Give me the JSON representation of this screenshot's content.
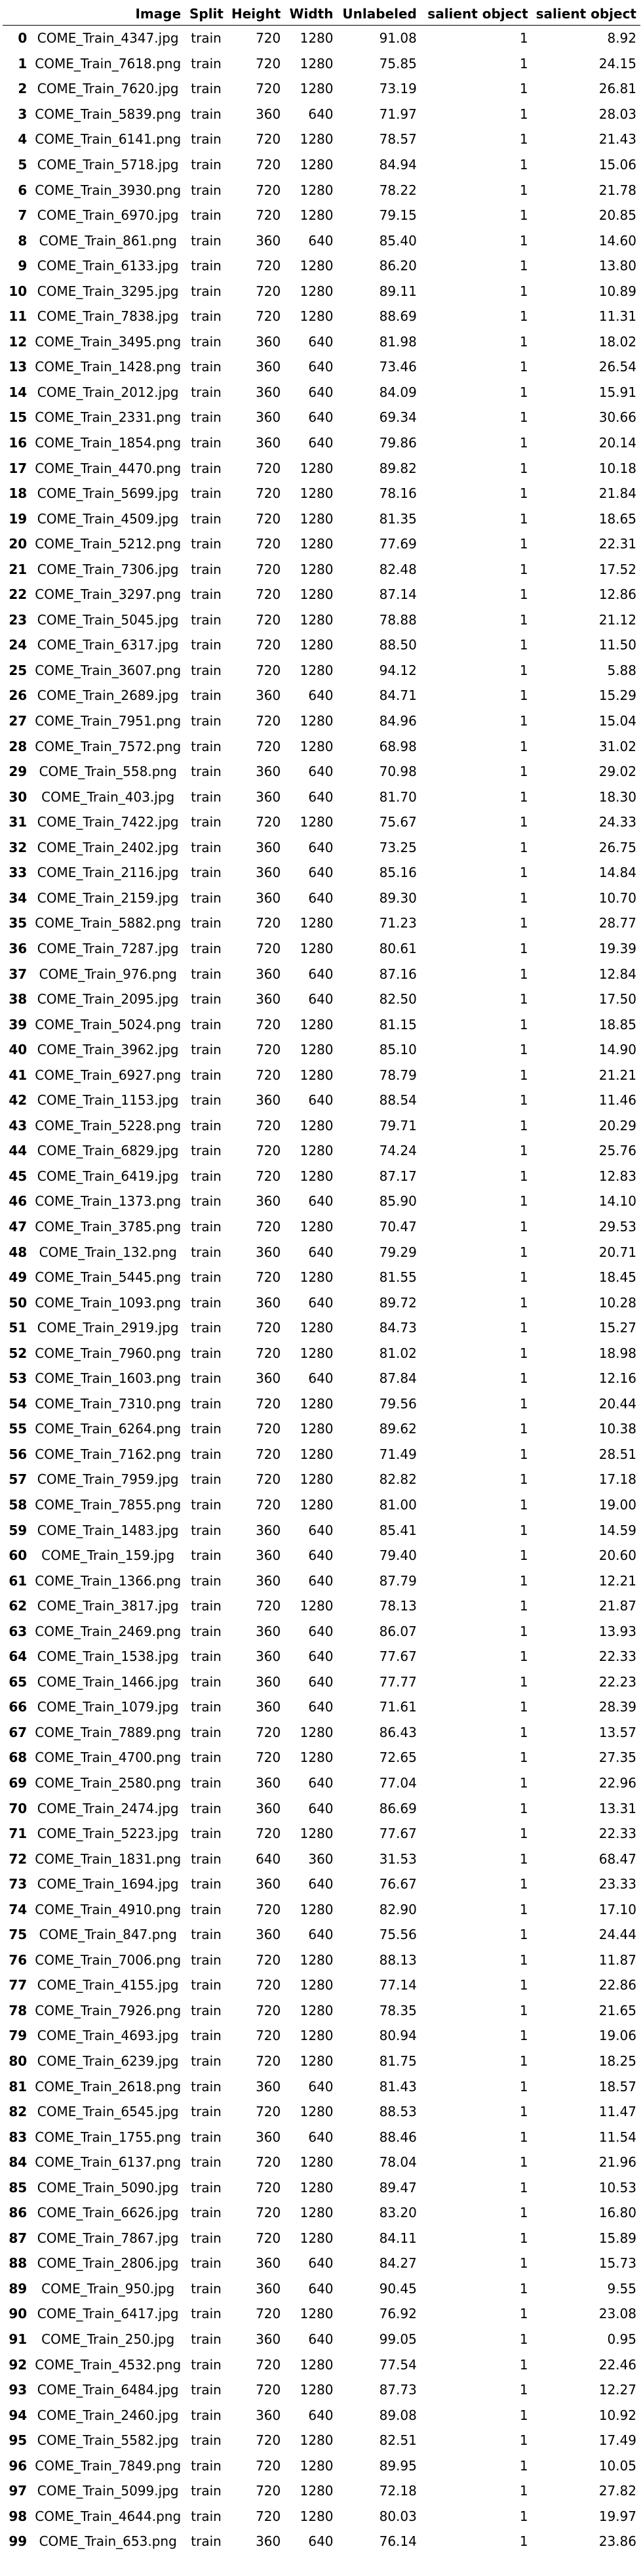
{
  "table": {
    "columns": [
      "",
      "Image",
      "Split",
      "Height",
      "Width",
      "Unlabeled",
      "salient object",
      "salient object"
    ],
    "rows": [
      [
        "0",
        "COME_Train_4347.jpg",
        "train",
        "720",
        "1280",
        "91.08",
        "1",
        "8.92"
      ],
      [
        "1",
        "COME_Train_7618.png",
        "train",
        "720",
        "1280",
        "75.85",
        "1",
        "24.15"
      ],
      [
        "2",
        "COME_Train_7620.jpg",
        "train",
        "720",
        "1280",
        "73.19",
        "1",
        "26.81"
      ],
      [
        "3",
        "COME_Train_5839.png",
        "train",
        "360",
        "640",
        "71.97",
        "1",
        "28.03"
      ],
      [
        "4",
        "COME_Train_6141.png",
        "train",
        "720",
        "1280",
        "78.57",
        "1",
        "21.43"
      ],
      [
        "5",
        "COME_Train_5718.jpg",
        "train",
        "720",
        "1280",
        "84.94",
        "1",
        "15.06"
      ],
      [
        "6",
        "COME_Train_3930.png",
        "train",
        "720",
        "1280",
        "78.22",
        "1",
        "21.78"
      ],
      [
        "7",
        "COME_Train_6970.jpg",
        "train",
        "720",
        "1280",
        "79.15",
        "1",
        "20.85"
      ],
      [
        "8",
        "COME_Train_861.png",
        "train",
        "360",
        "640",
        "85.40",
        "1",
        "14.60"
      ],
      [
        "9",
        "COME_Train_6133.jpg",
        "train",
        "720",
        "1280",
        "86.20",
        "1",
        "13.80"
      ],
      [
        "10",
        "COME_Train_3295.jpg",
        "train",
        "720",
        "1280",
        "89.11",
        "1",
        "10.89"
      ],
      [
        "11",
        "COME_Train_7838.jpg",
        "train",
        "720",
        "1280",
        "88.69",
        "1",
        "11.31"
      ],
      [
        "12",
        "COME_Train_3495.png",
        "train",
        "360",
        "640",
        "81.98",
        "1",
        "18.02"
      ],
      [
        "13",
        "COME_Train_1428.png",
        "train",
        "360",
        "640",
        "73.46",
        "1",
        "26.54"
      ],
      [
        "14",
        "COME_Train_2012.jpg",
        "train",
        "360",
        "640",
        "84.09",
        "1",
        "15.91"
      ],
      [
        "15",
        "COME_Train_2331.png",
        "train",
        "360",
        "640",
        "69.34",
        "1",
        "30.66"
      ],
      [
        "16",
        "COME_Train_1854.png",
        "train",
        "360",
        "640",
        "79.86",
        "1",
        "20.14"
      ],
      [
        "17",
        "COME_Train_4470.png",
        "train",
        "720",
        "1280",
        "89.82",
        "1",
        "10.18"
      ],
      [
        "18",
        "COME_Train_5699.jpg",
        "train",
        "720",
        "1280",
        "78.16",
        "1",
        "21.84"
      ],
      [
        "19",
        "COME_Train_4509.jpg",
        "train",
        "720",
        "1280",
        "81.35",
        "1",
        "18.65"
      ],
      [
        "20",
        "COME_Train_5212.png",
        "train",
        "720",
        "1280",
        "77.69",
        "1",
        "22.31"
      ],
      [
        "21",
        "COME_Train_7306.jpg",
        "train",
        "720",
        "1280",
        "82.48",
        "1",
        "17.52"
      ],
      [
        "22",
        "COME_Train_3297.png",
        "train",
        "720",
        "1280",
        "87.14",
        "1",
        "12.86"
      ],
      [
        "23",
        "COME_Train_5045.jpg",
        "train",
        "720",
        "1280",
        "78.88",
        "1",
        "21.12"
      ],
      [
        "24",
        "COME_Train_6317.jpg",
        "train",
        "720",
        "1280",
        "88.50",
        "1",
        "11.50"
      ],
      [
        "25",
        "COME_Train_3607.png",
        "train",
        "720",
        "1280",
        "94.12",
        "1",
        "5.88"
      ],
      [
        "26",
        "COME_Train_2689.jpg",
        "train",
        "360",
        "640",
        "84.71",
        "1",
        "15.29"
      ],
      [
        "27",
        "COME_Train_7951.png",
        "train",
        "720",
        "1280",
        "84.96",
        "1",
        "15.04"
      ],
      [
        "28",
        "COME_Train_7572.png",
        "train",
        "720",
        "1280",
        "68.98",
        "1",
        "31.02"
      ],
      [
        "29",
        "COME_Train_558.png",
        "train",
        "360",
        "640",
        "70.98",
        "1",
        "29.02"
      ],
      [
        "30",
        "COME_Train_403.jpg",
        "train",
        "360",
        "640",
        "81.70",
        "1",
        "18.30"
      ],
      [
        "31",
        "COME_Train_7422.jpg",
        "train",
        "720",
        "1280",
        "75.67",
        "1",
        "24.33"
      ],
      [
        "32",
        "COME_Train_2402.jpg",
        "train",
        "360",
        "640",
        "73.25",
        "1",
        "26.75"
      ],
      [
        "33",
        "COME_Train_2116.jpg",
        "train",
        "360",
        "640",
        "85.16",
        "1",
        "14.84"
      ],
      [
        "34",
        "COME_Train_2159.jpg",
        "train",
        "360",
        "640",
        "89.30",
        "1",
        "10.70"
      ],
      [
        "35",
        "COME_Train_5882.png",
        "train",
        "720",
        "1280",
        "71.23",
        "1",
        "28.77"
      ],
      [
        "36",
        "COME_Train_7287.jpg",
        "train",
        "720",
        "1280",
        "80.61",
        "1",
        "19.39"
      ],
      [
        "37",
        "COME_Train_976.png",
        "train",
        "360",
        "640",
        "87.16",
        "1",
        "12.84"
      ],
      [
        "38",
        "COME_Train_2095.jpg",
        "train",
        "360",
        "640",
        "82.50",
        "1",
        "17.50"
      ],
      [
        "39",
        "COME_Train_5024.png",
        "train",
        "720",
        "1280",
        "81.15",
        "1",
        "18.85"
      ],
      [
        "40",
        "COME_Train_3962.jpg",
        "train",
        "720",
        "1280",
        "85.10",
        "1",
        "14.90"
      ],
      [
        "41",
        "COME_Train_6927.png",
        "train",
        "720",
        "1280",
        "78.79",
        "1",
        "21.21"
      ],
      [
        "42",
        "COME_Train_1153.jpg",
        "train",
        "360",
        "640",
        "88.54",
        "1",
        "11.46"
      ],
      [
        "43",
        "COME_Train_5228.png",
        "train",
        "720",
        "1280",
        "79.71",
        "1",
        "20.29"
      ],
      [
        "44",
        "COME_Train_6829.jpg",
        "train",
        "720",
        "1280",
        "74.24",
        "1",
        "25.76"
      ],
      [
        "45",
        "COME_Train_6419.jpg",
        "train",
        "720",
        "1280",
        "87.17",
        "1",
        "12.83"
      ],
      [
        "46",
        "COME_Train_1373.png",
        "train",
        "360",
        "640",
        "85.90",
        "1",
        "14.10"
      ],
      [
        "47",
        "COME_Train_3785.png",
        "train",
        "720",
        "1280",
        "70.47",
        "1",
        "29.53"
      ],
      [
        "48",
        "COME_Train_132.png",
        "train",
        "360",
        "640",
        "79.29",
        "1",
        "20.71"
      ],
      [
        "49",
        "COME_Train_5445.png",
        "train",
        "720",
        "1280",
        "81.55",
        "1",
        "18.45"
      ],
      [
        "50",
        "COME_Train_1093.png",
        "train",
        "360",
        "640",
        "89.72",
        "1",
        "10.28"
      ],
      [
        "51",
        "COME_Train_2919.jpg",
        "train",
        "720",
        "1280",
        "84.73",
        "1",
        "15.27"
      ],
      [
        "52",
        "COME_Train_7960.png",
        "train",
        "720",
        "1280",
        "81.02",
        "1",
        "18.98"
      ],
      [
        "53",
        "COME_Train_1603.png",
        "train",
        "360",
        "640",
        "87.84",
        "1",
        "12.16"
      ],
      [
        "54",
        "COME_Train_7310.png",
        "train",
        "720",
        "1280",
        "79.56",
        "1",
        "20.44"
      ],
      [
        "55",
        "COME_Train_6264.png",
        "train",
        "720",
        "1280",
        "89.62",
        "1",
        "10.38"
      ],
      [
        "56",
        "COME_Train_7162.png",
        "train",
        "720",
        "1280",
        "71.49",
        "1",
        "28.51"
      ],
      [
        "57",
        "COME_Train_7959.jpg",
        "train",
        "720",
        "1280",
        "82.82",
        "1",
        "17.18"
      ],
      [
        "58",
        "COME_Train_7855.png",
        "train",
        "720",
        "1280",
        "81.00",
        "1",
        "19.00"
      ],
      [
        "59",
        "COME_Train_1483.jpg",
        "train",
        "360",
        "640",
        "85.41",
        "1",
        "14.59"
      ],
      [
        "60",
        "COME_Train_159.jpg",
        "train",
        "360",
        "640",
        "79.40",
        "1",
        "20.60"
      ],
      [
        "61",
        "COME_Train_1366.png",
        "train",
        "360",
        "640",
        "87.79",
        "1",
        "12.21"
      ],
      [
        "62",
        "COME_Train_3817.jpg",
        "train",
        "720",
        "1280",
        "78.13",
        "1",
        "21.87"
      ],
      [
        "63",
        "COME_Train_2469.png",
        "train",
        "360",
        "640",
        "86.07",
        "1",
        "13.93"
      ],
      [
        "64",
        "COME_Train_1538.jpg",
        "train",
        "360",
        "640",
        "77.67",
        "1",
        "22.33"
      ],
      [
        "65",
        "COME_Train_1466.jpg",
        "train",
        "360",
        "640",
        "77.77",
        "1",
        "22.23"
      ],
      [
        "66",
        "COME_Train_1079.jpg",
        "train",
        "360",
        "640",
        "71.61",
        "1",
        "28.39"
      ],
      [
        "67",
        "COME_Train_7889.png",
        "train",
        "720",
        "1280",
        "86.43",
        "1",
        "13.57"
      ],
      [
        "68",
        "COME_Train_4700.png",
        "train",
        "720",
        "1280",
        "72.65",
        "1",
        "27.35"
      ],
      [
        "69",
        "COME_Train_2580.png",
        "train",
        "360",
        "640",
        "77.04",
        "1",
        "22.96"
      ],
      [
        "70",
        "COME_Train_2474.jpg",
        "train",
        "360",
        "640",
        "86.69",
        "1",
        "13.31"
      ],
      [
        "71",
        "COME_Train_5223.jpg",
        "train",
        "720",
        "1280",
        "77.67",
        "1",
        "22.33"
      ],
      [
        "72",
        "COME_Train_1831.png",
        "train",
        "640",
        "360",
        "31.53",
        "1",
        "68.47"
      ],
      [
        "73",
        "COME_Train_1694.jpg",
        "train",
        "360",
        "640",
        "76.67",
        "1",
        "23.33"
      ],
      [
        "74",
        "COME_Train_4910.png",
        "train",
        "720",
        "1280",
        "82.90",
        "1",
        "17.10"
      ],
      [
        "75",
        "COME_Train_847.png",
        "train",
        "360",
        "640",
        "75.56",
        "1",
        "24.44"
      ],
      [
        "76",
        "COME_Train_7006.png",
        "train",
        "720",
        "1280",
        "88.13",
        "1",
        "11.87"
      ],
      [
        "77",
        "COME_Train_4155.jpg",
        "train",
        "720",
        "1280",
        "77.14",
        "1",
        "22.86"
      ],
      [
        "78",
        "COME_Train_7926.png",
        "train",
        "720",
        "1280",
        "78.35",
        "1",
        "21.65"
      ],
      [
        "79",
        "COME_Train_4693.jpg",
        "train",
        "720",
        "1280",
        "80.94",
        "1",
        "19.06"
      ],
      [
        "80",
        "COME_Train_6239.jpg",
        "train",
        "720",
        "1280",
        "81.75",
        "1",
        "18.25"
      ],
      [
        "81",
        "COME_Train_2618.png",
        "train",
        "360",
        "640",
        "81.43",
        "1",
        "18.57"
      ],
      [
        "82",
        "COME_Train_6545.jpg",
        "train",
        "720",
        "1280",
        "88.53",
        "1",
        "11.47"
      ],
      [
        "83",
        "COME_Train_1755.png",
        "train",
        "360",
        "640",
        "88.46",
        "1",
        "11.54"
      ],
      [
        "84",
        "COME_Train_6137.png",
        "train",
        "720",
        "1280",
        "78.04",
        "1",
        "21.96"
      ],
      [
        "85",
        "COME_Train_5090.jpg",
        "train",
        "720",
        "1280",
        "89.47",
        "1",
        "10.53"
      ],
      [
        "86",
        "COME_Train_6626.jpg",
        "train",
        "720",
        "1280",
        "83.20",
        "1",
        "16.80"
      ],
      [
        "87",
        "COME_Train_7867.jpg",
        "train",
        "720",
        "1280",
        "84.11",
        "1",
        "15.89"
      ],
      [
        "88",
        "COME_Train_2806.jpg",
        "train",
        "360",
        "640",
        "84.27",
        "1",
        "15.73"
      ],
      [
        "89",
        "COME_Train_950.jpg",
        "train",
        "360",
        "640",
        "90.45",
        "1",
        "9.55"
      ],
      [
        "90",
        "COME_Train_6417.jpg",
        "train",
        "720",
        "1280",
        "76.92",
        "1",
        "23.08"
      ],
      [
        "91",
        "COME_Train_250.jpg",
        "train",
        "360",
        "640",
        "99.05",
        "1",
        "0.95"
      ],
      [
        "92",
        "COME_Train_4532.png",
        "train",
        "720",
        "1280",
        "77.54",
        "1",
        "22.46"
      ],
      [
        "93",
        "COME_Train_6484.jpg",
        "train",
        "720",
        "1280",
        "87.73",
        "1",
        "12.27"
      ],
      [
        "94",
        "COME_Train_2460.jpg",
        "train",
        "360",
        "640",
        "89.08",
        "1",
        "10.92"
      ],
      [
        "95",
        "COME_Train_5582.jpg",
        "train",
        "720",
        "1280",
        "82.51",
        "1",
        "17.49"
      ],
      [
        "96",
        "COME_Train_7849.png",
        "train",
        "720",
        "1280",
        "89.95",
        "1",
        "10.05"
      ],
      [
        "97",
        "COME_Train_5099.jpg",
        "train",
        "720",
        "1280",
        "72.18",
        "1",
        "27.82"
      ],
      [
        "98",
        "COME_Train_4644.png",
        "train",
        "720",
        "1280",
        "80.03",
        "1",
        "19.97"
      ],
      [
        "99",
        "COME_Train_653.png",
        "train",
        "360",
        "640",
        "76.14",
        "1",
        "23.86"
      ]
    ]
  }
}
